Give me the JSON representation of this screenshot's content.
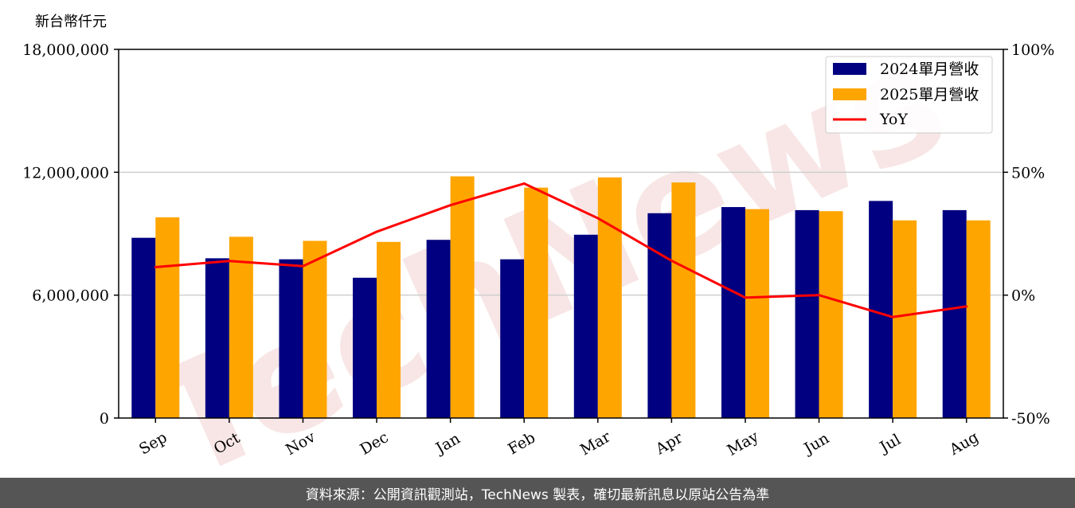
{
  "chart_data": {
    "type": "bar",
    "unit_label": "新台幣仟元",
    "categories": [
      "Sep",
      "Oct",
      "Nov",
      "Dec",
      "Jan",
      "Feb",
      "Mar",
      "Apr",
      "May",
      "Jun",
      "Jul",
      "Aug"
    ],
    "series": [
      {
        "name": "2024單月營收",
        "type": "bar",
        "axis": "left",
        "color": "#000080",
        "values": [
          8800000,
          7800000,
          7750000,
          6850000,
          8700000,
          7750000,
          8950000,
          10000000,
          10300000,
          10150000,
          10600000,
          10150000
        ]
      },
      {
        "name": "2025單月營收",
        "type": "bar",
        "axis": "left",
        "color": "#FFA500",
        "values": [
          9800000,
          8850000,
          8650000,
          8600000,
          11800000,
          11250000,
          11750000,
          11500000,
          10200000,
          10100000,
          9650000,
          9650000
        ]
      },
      {
        "name": "YoY",
        "type": "line",
        "axis": "right",
        "color": "#FF0000",
        "values": [
          11.4,
          13.9,
          11.8,
          25.8,
          36.6,
          45.4,
          31.3,
          14.0,
          -1.0,
          0.0,
          -8.9,
          -4.6
        ]
      }
    ],
    "y_left": {
      "min": 0,
      "max": 18000000,
      "ticks": [
        0,
        6000000,
        12000000,
        18000000
      ],
      "tick_labels": [
        "0",
        "6,000,000",
        "12,000,000",
        "18,000,000"
      ]
    },
    "y_right": {
      "min": -50,
      "max": 100,
      "ticks": [
        -50,
        0,
        50,
        100
      ],
      "tick_labels": [
        "-50%",
        "0%",
        "50%",
        "100%"
      ]
    },
    "grid": "horizontal",
    "legend_position": "top-right"
  },
  "watermark": "TechNews",
  "footer": {
    "source": "資料來源：公開資訊觀測站，TechNews 製表，確切最新訊息以原站公告為準"
  }
}
